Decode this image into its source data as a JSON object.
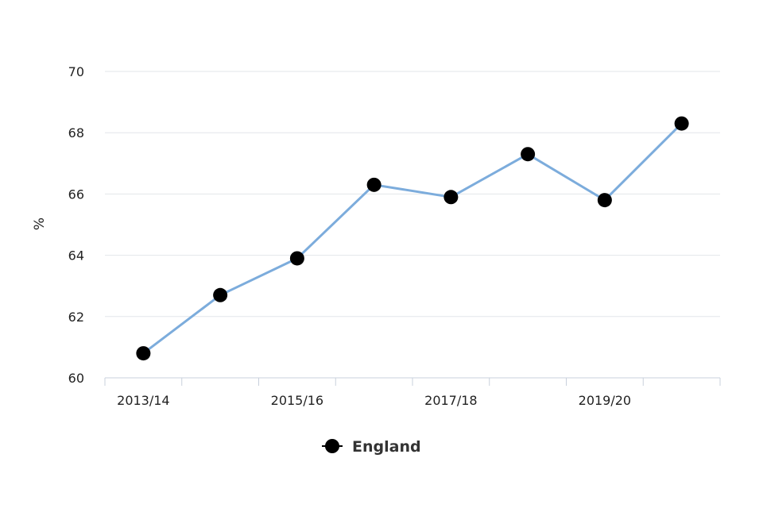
{
  "chart_data": {
    "type": "line",
    "title": "",
    "xlabel": "",
    "ylabel": "%",
    "x": [
      "2013/14",
      "2014/15",
      "2015/16",
      "2016/17",
      "2017/18",
      "2018/19",
      "2019/20",
      "2020/21"
    ],
    "x_tick_labels": [
      "2013/14",
      "",
      "2015/16",
      "",
      "2017/18",
      "",
      "2019/20",
      ""
    ],
    "ylim": [
      60,
      70
    ],
    "y_ticks": [
      "60",
      "62",
      "64",
      "66",
      "68",
      "70"
    ],
    "grid": true,
    "legend_position": "bottom-center",
    "series": [
      {
        "name": "England",
        "values": [
          60.8,
          62.7,
          63.9,
          66.3,
          65.9,
          67.3,
          65.8,
          68.3
        ],
        "line_color": "#7cacdc",
        "marker_color": "#000000"
      }
    ]
  }
}
